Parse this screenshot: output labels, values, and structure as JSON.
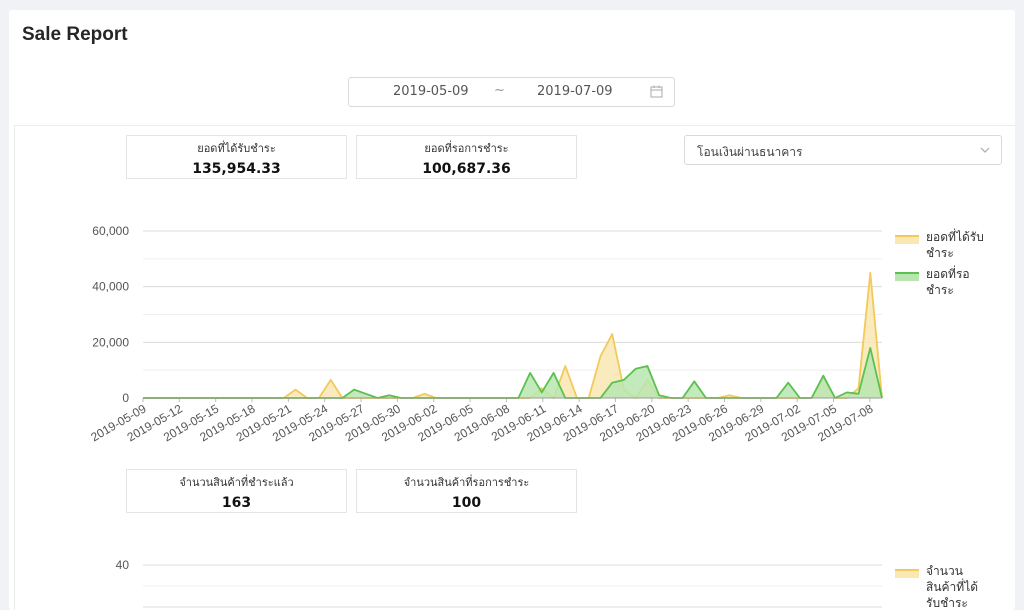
{
  "page": {
    "title": "Sale Report"
  },
  "date_range": {
    "start": "2019-05-09",
    "separator": "~",
    "end": "2019-07-09",
    "icon": "calendar-icon"
  },
  "stats_top": [
    {
      "label": "ยอดที่ได้รับชำระ",
      "value": "135,954.33"
    },
    {
      "label": "ยอดที่รอการชำระ",
      "value": "100,687.36"
    }
  ],
  "payment_filter": {
    "selected": "โอนเงินผ่านธนาคาร",
    "icon": "chevron-down-icon"
  },
  "stats_bottom": [
    {
      "label": "จำนวนสินค้าที่ชำระแล้ว",
      "value": "163"
    },
    {
      "label": "จำนวนสินค้าที่รอการชำระ",
      "value": "100"
    }
  ],
  "colors": {
    "received_line": "#f2c95a",
    "received_fill": "#f9e7b4",
    "pending_line": "#5cc050",
    "pending_fill": "#b9e6b0",
    "grid": "#e6e6e6"
  },
  "chart_data": [
    {
      "type": "area",
      "ylim": [
        0,
        60000
      ],
      "yticks": [
        "0",
        "20,000",
        "40,000",
        "60,000"
      ],
      "ytick_values": [
        0,
        20000,
        40000,
        60000
      ],
      "x_tick_labels": [
        "2019-05-09",
        "2019-05-12",
        "2019-05-15",
        "2019-05-18",
        "2019-05-21",
        "2019-05-24",
        "2019-05-27",
        "2019-05-30",
        "2019-06-02",
        "2019-06-05",
        "2019-06-08",
        "2019-06-11",
        "2019-06-14",
        "2019-06-17",
        "2019-06-20",
        "2019-06-23",
        "2019-06-26",
        "2019-06-29",
        "2019-07-02",
        "2019-07-05",
        "2019-07-08"
      ],
      "x_start": "2019-05-09",
      "x_end": "2019-07-09",
      "grid": true,
      "legend_position": "right",
      "series": [
        {
          "name": "ยอดที่ได้รับชำระ",
          "legend_lines": [
            "ยอดที่ได้รับ",
            "ชำระ"
          ],
          "values": [
            0,
            0,
            0,
            0,
            0,
            0,
            0,
            0,
            0,
            0,
            0,
            0,
            0,
            3000,
            0,
            0,
            6500,
            0,
            0,
            0,
            0,
            0,
            0,
            0,
            1500,
            0,
            0,
            0,
            0,
            0,
            0,
            0,
            0,
            0,
            3500,
            0,
            11500,
            0,
            0,
            15000,
            23000,
            3000,
            0,
            6500,
            0,
            0,
            0,
            0,
            0,
            0,
            1000,
            0,
            0,
            0,
            0,
            0,
            0,
            0,
            7000,
            0,
            0,
            3500,
            45000,
            0
          ]
        },
        {
          "name": "ยอดที่รอชำระ",
          "legend_lines": [
            "ยอดที่รอ",
            "ชำระ"
          ],
          "values": [
            0,
            0,
            0,
            0,
            0,
            0,
            0,
            0,
            0,
            0,
            0,
            0,
            0,
            0,
            0,
            0,
            0,
            0,
            3000,
            1500,
            0,
            1000,
            0,
            0,
            0,
            0,
            0,
            0,
            0,
            0,
            0,
            0,
            0,
            9000,
            2000,
            9000,
            0,
            0,
            0,
            0,
            5500,
            6500,
            10500,
            11500,
            1000,
            0,
            0,
            6000,
            0,
            0,
            0,
            0,
            0,
            0,
            0,
            5500,
            0,
            0,
            8000,
            0,
            2000,
            1500,
            18000,
            0
          ]
        }
      ]
    },
    {
      "type": "area",
      "ytick_visible": [
        "40"
      ],
      "ytick_values": [
        40
      ],
      "grid": true,
      "legend_position": "right",
      "series": [
        {
          "name": "จำนวนสินค้าที่ได้รับชำระ",
          "legend_lines": [
            "จำนวน",
            "สินค้าที่ได้",
            "รับชำระ"
          ],
          "values": []
        }
      ]
    }
  ]
}
